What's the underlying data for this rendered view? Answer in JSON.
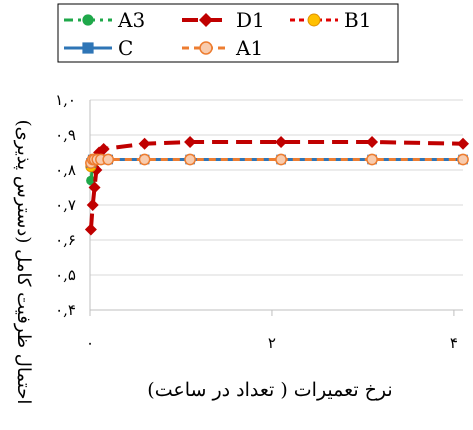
{
  "chart_data": {
    "type": "line",
    "xlabel": "نرخ تعمیرات ( تعداد در ساعت)",
    "ylabel": "احتمال ظرفیت کامل (دسترس پذیری)",
    "xlim": [
      0,
      4.1
    ],
    "ylim": [
      0.4,
      1.0
    ],
    "x_ticks": [
      0,
      2,
      4
    ],
    "x_tick_labels": [
      "۰",
      "۲",
      "۴"
    ],
    "y_ticks": [
      0.4,
      0.5,
      0.6,
      0.7,
      0.8,
      0.9,
      1.0
    ],
    "y_tick_labels": [
      "۰,۴",
      "۰,۵",
      "۰,۶",
      "۰,۷",
      "۰,۸",
      "۰,۹",
      "۱,۰"
    ],
    "grid": "horizontal",
    "legend": "top",
    "series": [
      {
        "name": "A3",
        "color": "#1fa84a",
        "style": "dashdot",
        "marker": "circle",
        "x": [
          0.01,
          0.03,
          0.05,
          0.08,
          0.12,
          0.2,
          0.6,
          1.1,
          2.1,
          3.1,
          4.1
        ],
        "y": [
          0.77,
          0.81,
          0.825,
          0.83,
          0.83,
          0.83,
          0.83,
          0.83,
          0.83,
          0.83,
          0.83
        ]
      },
      {
        "name": "D1",
        "color": "#c00000",
        "style": "longdash",
        "marker": "diamond",
        "x": [
          0.01,
          0.03,
          0.05,
          0.07,
          0.1,
          0.15,
          0.6,
          1.1,
          2.1,
          3.1,
          4.1
        ],
        "y": [
          0.63,
          0.7,
          0.75,
          0.8,
          0.85,
          0.86,
          0.875,
          0.88,
          0.88,
          0.88,
          0.875
        ]
      },
      {
        "name": "B1",
        "color": "#e00000",
        "style": "shortdash",
        "marker": "circle-yellow",
        "x": [
          0.01,
          0.03,
          0.05,
          0.08,
          0.12,
          0.2,
          0.6,
          1.1,
          2.1,
          3.1,
          4.1
        ],
        "y": [
          0.81,
          0.825,
          0.83,
          0.83,
          0.83,
          0.83,
          0.83,
          0.83,
          0.83,
          0.83,
          0.83
        ]
      },
      {
        "name": "C",
        "color": "#2e75b6",
        "style": "solid",
        "marker": "square",
        "x": [
          0.01,
          0.03,
          0.05,
          0.08,
          0.12,
          0.2,
          0.6,
          1.1,
          2.1,
          3.1,
          4.1
        ],
        "y": [
          0.82,
          0.83,
          0.83,
          0.83,
          0.83,
          0.83,
          0.83,
          0.83,
          0.83,
          0.83,
          0.83
        ]
      },
      {
        "name": "A1",
        "color": "#ed7d31",
        "style": "dash",
        "marker": "circle-light",
        "x": [
          0.01,
          0.03,
          0.05,
          0.08,
          0.12,
          0.2,
          0.6,
          1.1,
          2.1,
          3.1,
          4.1
        ],
        "y": [
          0.82,
          0.83,
          0.83,
          0.83,
          0.83,
          0.83,
          0.83,
          0.83,
          0.83,
          0.83,
          0.83
        ]
      }
    ]
  }
}
